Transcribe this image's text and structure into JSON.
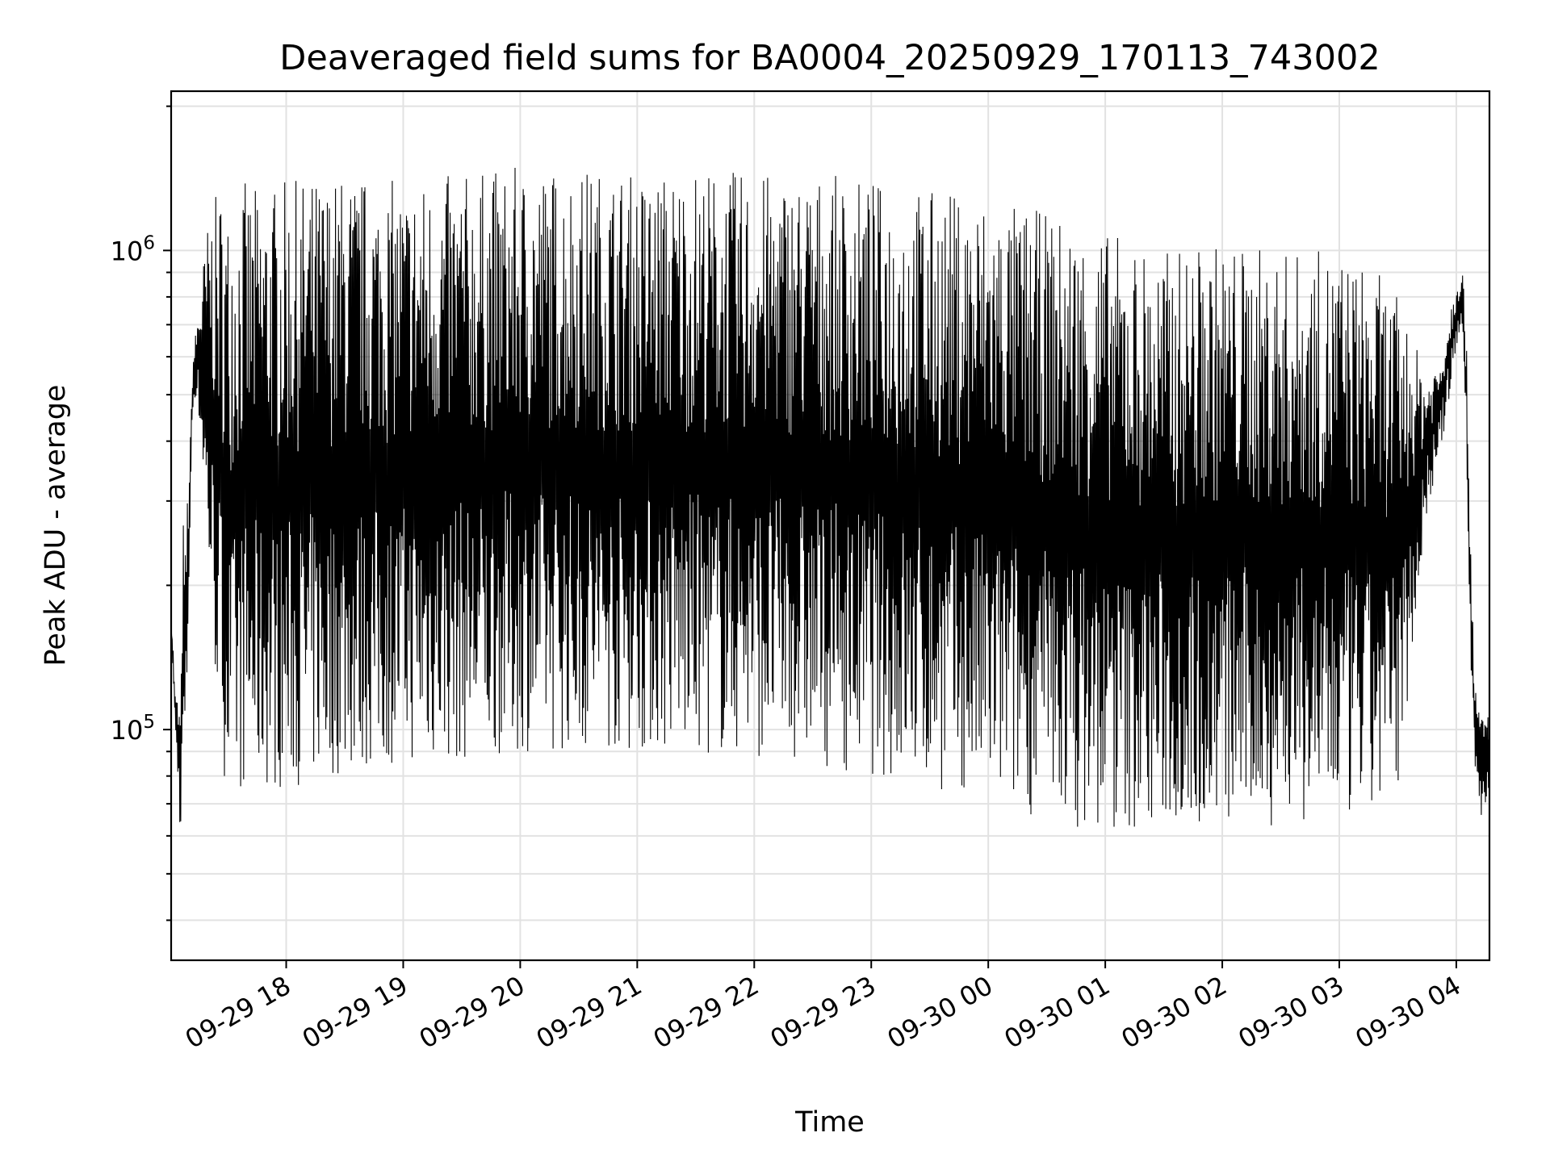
{
  "chart_data": {
    "type": "line",
    "title": "Deaveraged field sums for BA0004_20250929_170113_743002",
    "xlabel": "Time",
    "ylabel": "Peak ADU - average",
    "yscale": "log",
    "xlim": [
      "2025-09-29 17:01",
      "2025-09-30 04:17"
    ],
    "ylim": [
      33000,
      2150000
    ],
    "grid": true,
    "line_color": "#000000",
    "x_tick_labels": [
      "09-29 18",
      "09-29 19",
      "09-29 20",
      "09-29 21",
      "09-29 22",
      "09-29 23",
      "09-30 00",
      "09-30 01",
      "09-30 02",
      "09-30 03",
      "09-30 04"
    ],
    "y_tick_labels": [
      {
        "value": 100000,
        "base": "10",
        "exp": "5"
      },
      {
        "value": 1000000,
        "base": "10",
        "exp": "6"
      }
    ],
    "series": [
      {
        "x": [
          "2025-09-29 17:01",
          "2025-09-29 17:02",
          "2025-09-29 17:03",
          "2025-09-29 17:05",
          "2025-09-29 17:06",
          "2025-09-29 17:07",
          "2025-09-29 17:08",
          "2025-09-29 17:09",
          "2025-09-29 17:11",
          "2025-09-29 17:12",
          "2025-09-29 17:14",
          "2025-09-29 17:16",
          "2025-09-29 17:18",
          "2025-09-29 17:21",
          "2025-09-29 17:24",
          "2025-09-29 17:27",
          "2025-09-29 17:29",
          "2025-09-29 17:31",
          "2025-09-29 17:32",
          "2025-09-29 17:34",
          "2025-09-29 17:36",
          "2025-09-29 17:38",
          "2025-09-29 17:45",
          "2025-09-29 18:00",
          "2025-09-29 18:30",
          "2025-09-29 19:00",
          "2025-09-29 19:30",
          "2025-09-29 20:00",
          "2025-09-29 20:30",
          "2025-09-29 21:00",
          "2025-09-29 21:30",
          "2025-09-29 22:00",
          "2025-09-29 22:30",
          "2025-09-29 23:00",
          "2025-09-29 23:30",
          "2025-09-30 00:00",
          "2025-09-30 00:30",
          "2025-09-30 01:00",
          "2025-09-30 01:30",
          "2025-09-30 02:00",
          "2025-09-30 02:30",
          "2025-09-30 03:00",
          "2025-09-30 03:20",
          "2025-09-30 03:30",
          "2025-09-30 03:38",
          "2025-09-30 03:45",
          "2025-09-30 03:52",
          "2025-09-30 04:00",
          "2025-09-30 04:03",
          "2025-09-30 04:05",
          "2025-09-30 04:07",
          "2025-09-30 04:09",
          "2025-09-30 04:11",
          "2025-09-30 04:13",
          "2025-09-30 04:15",
          "2025-09-30 04:17"
        ],
        "envelope_high": [
          170000,
          150000,
          120000,
          115000,
          110000,
          300000,
          220000,
          300000,
          420000,
          600000,
          700000,
          850000,
          1000000,
          1250000,
          1300000,
          1380000,
          1300000,
          1200000,
          1400000,
          1300000,
          1350000,
          1400000,
          1350000,
          1400000,
          1450000,
          1400000,
          1450000,
          1500000,
          1500000,
          1450000,
          1500000,
          1450000,
          1450000,
          1400000,
          1350000,
          1300000,
          1200000,
          1100000,
          1000000,
          1050000,
          1000000,
          1000000,
          900000,
          800000,
          650000,
          550000,
          600000,
          900000,
          950000,
          700000,
          300000,
          150000,
          110000,
          110000,
          110000,
          110000
        ],
        "envelope_low": [
          160000,
          130000,
          100000,
          70000,
          55000,
          80000,
          85000,
          110000,
          300000,
          450000,
          500000,
          400000,
          300000,
          180000,
          120000,
          90000,
          75000,
          70000,
          65000,
          70000,
          72000,
          75000,
          75000,
          75000,
          80000,
          85000,
          85000,
          90000,
          90000,
          90000,
          88000,
          88000,
          85000,
          80000,
          75000,
          70000,
          65000,
          60000,
          62000,
          62000,
          63000,
          63000,
          65000,
          75000,
          150000,
          280000,
          380000,
          600000,
          700000,
          400000,
          150000,
          90000,
          70000,
          65000,
          68000,
          75000
        ]
      }
    ]
  }
}
